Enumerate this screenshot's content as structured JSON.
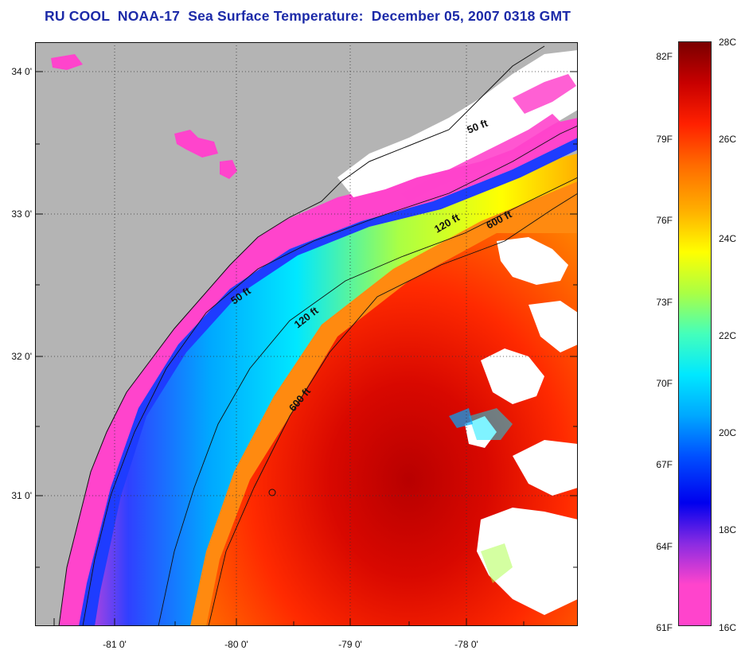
{
  "title": "RU COOL  NOAA-17  Sea Surface Temperature:  December 05, 2007 0318 GMT",
  "map": {
    "lat_labels": [
      "34 0'",
      "33 0'",
      "32 0'",
      "31 0'"
    ],
    "lon_labels": [
      "-81 0'",
      "-80 0'",
      "-79 0'",
      "-78 0'"
    ],
    "isobaths": [
      "50 ft",
      "120 ft",
      "600 ft",
      "50 ft",
      "120 ft",
      "600 ft"
    ]
  },
  "colorbar": {
    "f_labels": [
      "82F",
      "79F",
      "76F",
      "73F",
      "70F",
      "67F",
      "64F",
      "61F"
    ],
    "c_labels": [
      "28C",
      "26C",
      "24C",
      "22C",
      "20C",
      "18C",
      "16C"
    ],
    "colors": [
      "#7a0000",
      "#c80000",
      "#ff2000",
      "#ff6a00",
      "#ffb000",
      "#ffff00",
      "#aaff44",
      "#44ffbb",
      "#00e8ff",
      "#00a8ff",
      "#0050ff",
      "#0000ee",
      "#8a2be2",
      "#ff44cc",
      "#ff44cc"
    ]
  }
}
